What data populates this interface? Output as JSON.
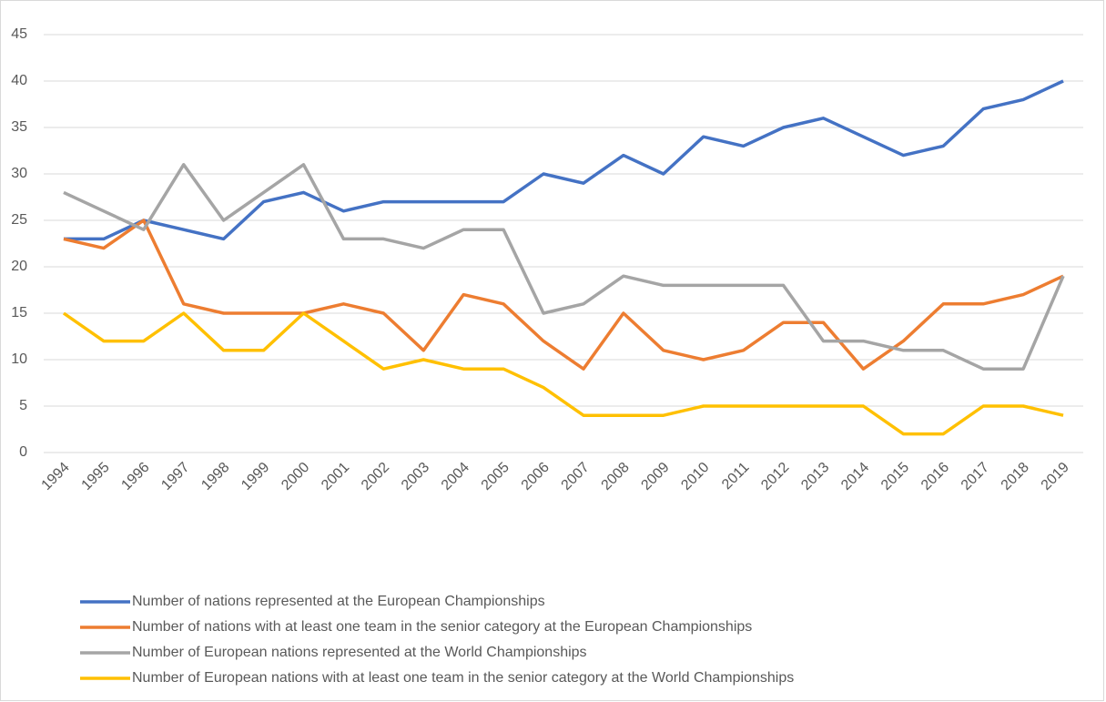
{
  "chart_data": {
    "type": "line",
    "categories": [
      "1994",
      "1995",
      "1996",
      "1997",
      "1998",
      "1999",
      "2000",
      "2001",
      "2002",
      "2003",
      "2004",
      "2005",
      "2006",
      "2007",
      "2008",
      "2009",
      "2010",
      "2011",
      "2012",
      "2013",
      "2014",
      "2015",
      "2016",
      "2017",
      "2018",
      "2019"
    ],
    "series": [
      {
        "name": "Number of nations represented at the European Championships",
        "color": "#4472c4",
        "values": [
          23,
          23,
          25,
          24,
          23,
          27,
          28,
          26,
          27,
          27,
          27,
          27,
          30,
          29,
          32,
          30,
          34,
          33,
          35,
          36,
          34,
          32,
          33,
          37,
          38,
          40
        ]
      },
      {
        "name": "Number of nations with at least one team in the senior category at the European Championships",
        "color": "#ed7d31",
        "values": [
          23,
          22,
          25,
          16,
          15,
          15,
          15,
          16,
          15,
          11,
          17,
          16,
          12,
          9,
          15,
          11,
          10,
          11,
          14,
          14,
          9,
          12,
          16,
          16,
          17,
          19
        ]
      },
      {
        "name": "Number of European nations represented at the World Championships",
        "color": "#a5a5a5",
        "values": [
          28,
          26,
          24,
          31,
          25,
          28,
          31,
          23,
          23,
          22,
          24,
          24,
          15,
          16,
          19,
          18,
          18,
          18,
          18,
          12,
          12,
          11,
          11,
          9,
          9,
          19
        ]
      },
      {
        "name": "Number of European nations with at least one team in the senior category at the World Championships",
        "color": "#ffc000",
        "values": [
          15,
          12,
          12,
          15,
          11,
          11,
          15,
          12,
          9,
          10,
          9,
          9,
          7,
          4,
          4,
          4,
          5,
          5,
          5,
          5,
          5,
          2,
          2,
          5,
          5,
          4
        ]
      }
    ],
    "ylim": [
      0,
      45
    ],
    "yticks": [
      0,
      5,
      10,
      15,
      20,
      25,
      30,
      35,
      40,
      45
    ],
    "grid": true,
    "legend": "bottom"
  }
}
